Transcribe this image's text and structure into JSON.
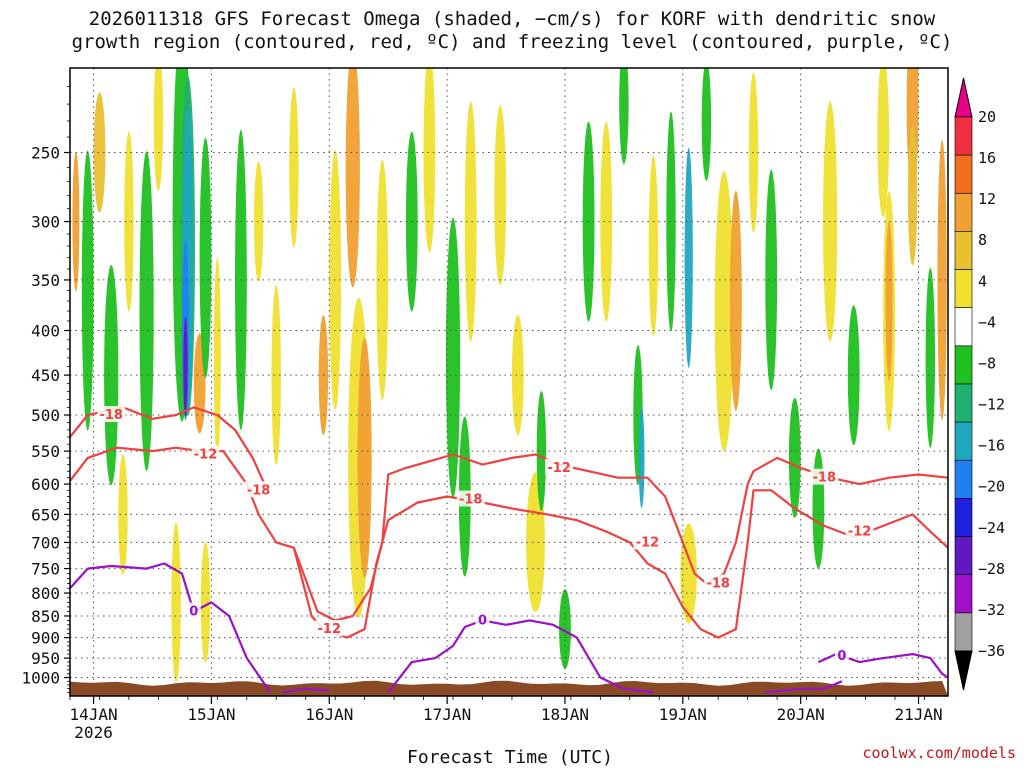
{
  "chart_data": {
    "type": "heatmap",
    "title_line1": "2026011318 GFS Forecast Omega (shaded, −cm/s) for KORF with dendritic snow",
    "title_line2": "growth region (contoured, red, ºC) and freezing level (contoured, purple, ºC)",
    "xlabel": "Forecast Time (UTC)",
    "ylabel": "",
    "x_ticks": [
      "14JAN",
      "15JAN",
      "16JAN",
      "17JAN",
      "18JAN",
      "19JAN",
      "20JAN",
      "21JAN"
    ],
    "x_tick_sublabel": "2026",
    "y_ticks": [
      250,
      300,
      350,
      400,
      450,
      500,
      550,
      600,
      650,
      700,
      750,
      800,
      850,
      900,
      950,
      1000
    ],
    "y_scale": "log",
    "y_inverted": true,
    "xlim_days": [
      13.8,
      21.25
    ],
    "ylim_hpa": [
      1050,
      200
    ],
    "grid": true,
    "colorbar": {
      "labels": [
        "20",
        "16",
        "12",
        "8",
        "4",
        "−4",
        "−8",
        "−12",
        "−16",
        "−20",
        "−24",
        "−28",
        "−32",
        "−36"
      ],
      "colors": [
        "#e8008a",
        "#f03040",
        "#f07020",
        "#f0a030",
        "#e8c030",
        "#f0e030",
        "#ffffff",
        "#20c020",
        "#20b070",
        "#20a8c0",
        "#2080f0",
        "#2020e0",
        "#6018c0",
        "#a010c8",
        "#a0a0a0",
        "#000000"
      ]
    },
    "contour_labels": {
      "dgz_red": [
        "-18",
        "-12",
        "-18",
        "-12",
        "-18",
        "-12",
        "-12",
        "-18",
        "-18",
        "-12"
      ],
      "freezing_purple": [
        "0",
        "0",
        "0"
      ]
    },
    "colors": {
      "dgz_contour": "#f04040",
      "freezing_contour": "#9a10c8",
      "ground": "#8a4a26"
    }
  },
  "footer": {
    "source": "coolwx.com/models"
  }
}
